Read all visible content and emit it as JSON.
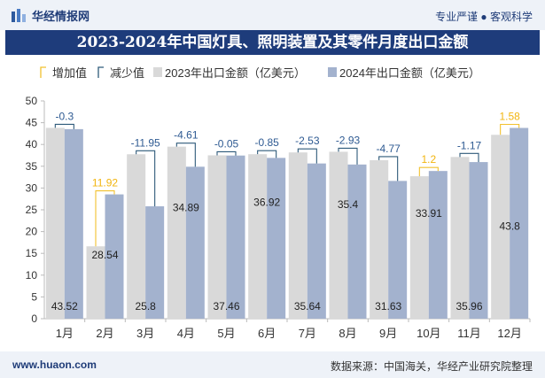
{
  "header": {
    "brand": "华经情报网",
    "slogan": "专业严谨 ● 客观科学"
  },
  "title": "2023-2024年中国灯具、照明装置及其零件月度出口金额",
  "footer": {
    "site": "www.huaon.com",
    "source": "数据来源：中国海关，华经产业研究院整理"
  },
  "colors": {
    "bar2023": "#d9d9d9",
    "bar2024": "#a3b2ce",
    "increase": "#f2c12e",
    "decrease": "#2e5a7a",
    "increase_text": "#f2b50f",
    "decrease_text": "#2e5a92"
  },
  "chart_data": {
    "type": "bar",
    "categories": [
      "1月",
      "2月",
      "3月",
      "4月",
      "5月",
      "6月",
      "7月",
      "8月",
      "9月",
      "10月",
      "11月",
      "12月"
    ],
    "series": [
      {
        "name": "2023年出口金额（亿美元）",
        "values": [
          43.82,
          16.62,
          37.75,
          39.5,
          37.51,
          37.77,
          38.17,
          38.33,
          36.4,
          32.71,
          37.13,
          42.22
        ]
      },
      {
        "name": "2024年出口金额（亿美元）",
        "values": [
          43.52,
          28.54,
          25.8,
          34.89,
          37.46,
          36.92,
          35.64,
          35.4,
          31.63,
          33.91,
          35.96,
          43.8
        ]
      }
    ],
    "differences": [
      -0.3,
      11.92,
      -11.95,
      -4.61,
      -0.05,
      -0.85,
      -2.53,
      -2.93,
      -4.77,
      1.2,
      -1.17,
      1.58
    ],
    "legend": [
      "增加值",
      "减少值",
      "2023年出口金额（亿美元）",
      "2024年出口金额（亿美元）"
    ],
    "ylim": [
      0,
      50
    ],
    "yticks": [
      0,
      5,
      10,
      15,
      20,
      25,
      30,
      35,
      40,
      45,
      50
    ],
    "legend_position": "top-left",
    "grid": false
  }
}
